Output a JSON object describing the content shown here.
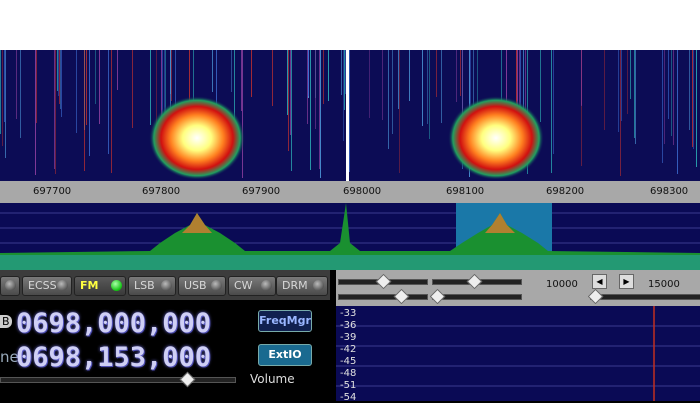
{
  "frequency_axis": {
    "ticks": [
      "697700",
      "697800",
      "697900",
      "698000",
      "698100",
      "698200",
      "698300"
    ]
  },
  "modes": [
    {
      "label": "ECSS",
      "active": false
    },
    {
      "label": "FM",
      "active": true
    },
    {
      "label": "LSB",
      "active": false
    },
    {
      "label": "USB",
      "active": false
    },
    {
      "label": "CW",
      "active": false
    },
    {
      "label": "DRM",
      "active": false
    }
  ],
  "lo": {
    "label": "B",
    "value": "0698,000,000"
  },
  "tune": {
    "label": "ne",
    "value": "0698,153,000"
  },
  "buttons": {
    "freqmgr": "FreqMgr",
    "extio": "ExtIO"
  },
  "volume": {
    "label": "Volume",
    "level": 0.8
  },
  "audio_axis": {
    "ticks": [
      "10000",
      "15000"
    ]
  },
  "db_scale": [
    "-33",
    "-36",
    "-39",
    "-42",
    "-45",
    "-48",
    "-51",
    "-54"
  ],
  "colors": {
    "background": "#0a0a55",
    "accent": "#ffff40",
    "led_active": "#10c010",
    "marker": "#c03020"
  }
}
